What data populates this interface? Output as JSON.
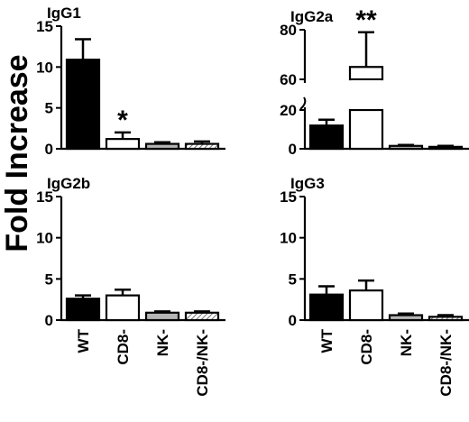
{
  "figure": {
    "ylabel": "Fold Increase",
    "colors": {
      "wt": "#000000",
      "cd8": "#ffffff",
      "nk": "#b5b5b5",
      "cd8nk": "#c8c8c8",
      "stroke": "#000000"
    }
  },
  "chart_data": [
    {
      "type": "bar",
      "title": "IgG1",
      "categories": [
        "WT",
        "CD8-",
        "NK-",
        "CD8-/NK-"
      ],
      "values": [
        10.9,
        1.2,
        0.6,
        0.6
      ],
      "errors": [
        2.5,
        0.8,
        0.2,
        0.3
      ],
      "yticks": [
        "0",
        "5",
        "10",
        "15"
      ],
      "ylim": [
        0,
        15
      ],
      "annotations": [
        "",
        "*",
        "",
        ""
      ],
      "show_categories": false
    },
    {
      "type": "bar",
      "title": "IgG2a",
      "categories": [
        "WT",
        "CD8-",
        "NK-",
        "CD8-/NK-"
      ],
      "values": [
        12,
        65,
        1.5,
        1
      ],
      "errors": [
        3,
        14,
        0.5,
        0.5
      ],
      "yticks": [
        "0",
        "20",
        "60",
        "80"
      ],
      "ylim": [
        0,
        80
      ],
      "axis_break": [
        24,
        54
      ],
      "annotations": [
        "",
        "**",
        "",
        ""
      ],
      "show_categories": false
    },
    {
      "type": "bar",
      "title": "IgG2b",
      "categories": [
        "WT",
        "CD8-",
        "NK-",
        "CD8-/NK-"
      ],
      "values": [
        2.6,
        3,
        0.9,
        0.9
      ],
      "errors": [
        0.4,
        0.7,
        0.15,
        0.15
      ],
      "yticks": [
        "0",
        "5",
        "10",
        "15"
      ],
      "ylim": [
        0,
        15
      ],
      "annotations": [
        "",
        "",
        "",
        ""
      ],
      "show_categories": true
    },
    {
      "type": "bar",
      "title": "IgG3",
      "categories": [
        "WT",
        "CD8-",
        "NK-",
        "CD8-/NK-"
      ],
      "values": [
        3.1,
        3.6,
        0.6,
        0.4
      ],
      "errors": [
        1.0,
        1.2,
        0.2,
        0.2
      ],
      "yticks": [
        "0",
        "5",
        "10",
        "15"
      ],
      "ylim": [
        0,
        15
      ],
      "annotations": [
        "",
        "",
        "",
        ""
      ],
      "show_categories": true
    }
  ]
}
